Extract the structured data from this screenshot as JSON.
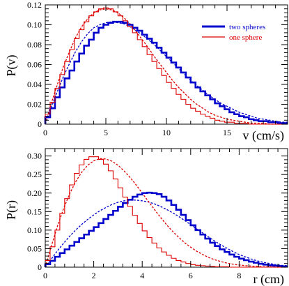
{
  "chart_data": [
    {
      "type": "line",
      "xlabel": "v (cm/s)",
      "ylabel": "P(v)",
      "xlim": [
        0,
        20
      ],
      "ylim": [
        0,
        0.12
      ],
      "xticks": [
        0,
        5,
        10,
        15
      ],
      "yticks": [
        0,
        0.02,
        0.04,
        0.06,
        0.08,
        0.1,
        0.12
      ],
      "ytick_labels": [
        "0",
        "0.02",
        "0.04",
        "0.06",
        "0.08",
        "0.10",
        "0.12"
      ],
      "legend": {
        "position": "top-right",
        "entries": [
          "two spheres",
          "one sphere"
        ]
      },
      "colors": {
        "two spheres": "#0000cc",
        "one sphere": "#dd0000"
      },
      "bin_width": 0.4,
      "series": [
        {
          "name": "two spheres",
          "style": "histogram",
          "x": [
            0.2,
            0.6,
            1,
            1.4,
            1.8,
            2.2,
            2.6,
            3,
            3.4,
            3.8,
            4.2,
            4.6,
            5,
            5.4,
            5.8,
            6.2,
            6.6,
            7,
            7.4,
            7.8,
            8.2,
            8.6,
            9,
            9.4,
            9.8,
            10.2,
            10.6,
            11,
            11.4,
            11.8,
            12.2,
            12.6,
            13,
            13.4,
            13.8,
            14.2,
            14.6,
            15,
            15.4,
            15.8,
            16.2,
            16.6,
            17,
            17.4,
            17.8,
            18.2,
            18.6,
            19,
            19.4,
            19.8
          ],
          "values": [
            0.007,
            0.016,
            0.027,
            0.037,
            0.046,
            0.054,
            0.063,
            0.071,
            0.079,
            0.085,
            0.092,
            0.097,
            0.1,
            0.102,
            0.103,
            0.103,
            0.102,
            0.1,
            0.097,
            0.094,
            0.09,
            0.086,
            0.082,
            0.077,
            0.072,
            0.067,
            0.062,
            0.057,
            0.052,
            0.047,
            0.042,
            0.037,
            0.033,
            0.029,
            0.025,
            0.021,
            0.018,
            0.015,
            0.012,
            0.01,
            0.008,
            0.007,
            0.005,
            0.004,
            0.003,
            0.003,
            0.002,
            0.002,
            0.001,
            0.001
          ]
        },
        {
          "name": "two spheres",
          "style": "dashed-fit",
          "x": [
            0,
            0.5,
            1,
            1.5,
            2,
            2.5,
            3,
            3.5,
            4,
            4.5,
            5,
            5.5,
            6,
            6.5,
            7,
            7.5,
            8,
            8.5,
            9,
            9.5,
            10,
            10.5,
            11,
            11.5,
            12,
            12.5,
            13,
            13.5,
            14,
            14.5,
            15,
            15.5,
            16,
            16.5,
            17,
            17.5,
            18,
            18.5,
            19,
            19.5,
            20
          ],
          "values": [
            0,
            0.017,
            0.033,
            0.048,
            0.061,
            0.073,
            0.083,
            0.091,
            0.097,
            0.1,
            0.102,
            0.103,
            0.102,
            0.101,
            0.098,
            0.094,
            0.09,
            0.085,
            0.08,
            0.074,
            0.068,
            0.062,
            0.056,
            0.05,
            0.044,
            0.039,
            0.034,
            0.029,
            0.025,
            0.021,
            0.018,
            0.015,
            0.012,
            0.01,
            0.008,
            0.006,
            0.005,
            0.004,
            0.003,
            0.002,
            0.002
          ]
        },
        {
          "name": "one sphere",
          "style": "histogram",
          "x": [
            0.2,
            0.6,
            1,
            1.4,
            1.8,
            2.2,
            2.6,
            3,
            3.4,
            3.8,
            4.2,
            4.6,
            5,
            5.4,
            5.8,
            6.2,
            6.6,
            7,
            7.4,
            7.8,
            8.2,
            8.6,
            9,
            9.4,
            9.8,
            10.2,
            10.6,
            11,
            11.4,
            11.8,
            12.2,
            12.6,
            13,
            13.4,
            13.8,
            14.2,
            14.6,
            15,
            15.4,
            15.8,
            16.2,
            16.6,
            17,
            17.4,
            17.8,
            18.2,
            18.6,
            19,
            19.4,
            19.8
          ],
          "values": [
            0.01,
            0.022,
            0.036,
            0.05,
            0.063,
            0.075,
            0.086,
            0.095,
            0.103,
            0.109,
            0.113,
            0.116,
            0.117,
            0.116,
            0.113,
            0.109,
            0.104,
            0.098,
            0.092,
            0.085,
            0.078,
            0.07,
            0.063,
            0.056,
            0.049,
            0.042,
            0.036,
            0.03,
            0.025,
            0.02,
            0.016,
            0.013,
            0.01,
            0.008,
            0.006,
            0.004,
            0.003,
            0.002,
            0.002,
            0.001,
            0.001,
            0.001,
            0,
            0,
            0,
            0,
            0,
            0,
            0,
            0
          ]
        },
        {
          "name": "one sphere",
          "style": "dashed-fit",
          "x": [
            0,
            0.5,
            1,
            1.5,
            2,
            2.5,
            3,
            3.5,
            4,
            4.5,
            5,
            5.5,
            6,
            6.5,
            7,
            7.5,
            8,
            8.5,
            9,
            9.5,
            10,
            10.5,
            11,
            11.5,
            12,
            12.5,
            13,
            13.5,
            14,
            14.5,
            15,
            15.5,
            16,
            16.5,
            17,
            17.5,
            18,
            18.5,
            19,
            19.5,
            20
          ],
          "values": [
            0,
            0.021,
            0.04,
            0.058,
            0.073,
            0.087,
            0.098,
            0.106,
            0.112,
            0.115,
            0.116,
            0.115,
            0.112,
            0.107,
            0.101,
            0.093,
            0.085,
            0.077,
            0.068,
            0.06,
            0.052,
            0.044,
            0.037,
            0.031,
            0.025,
            0.02,
            0.016,
            0.012,
            0.009,
            0.007,
            0.005,
            0.004,
            0.003,
            0.002,
            0.001,
            0.001,
            0.001,
            0,
            0,
            0,
            0
          ]
        }
      ]
    },
    {
      "type": "line",
      "xlabel": "r (cm)",
      "ylabel": "P(r)",
      "xlim": [
        0,
        10
      ],
      "ylim": [
        0,
        0.32
      ],
      "xticks": [
        0,
        2,
        4,
        6,
        8
      ],
      "yticks": [
        0,
        0.05,
        0.1,
        0.15,
        0.2,
        0.25,
        0.3
      ],
      "ytick_labels": [
        "0",
        "0.05",
        "0.10",
        "0.15",
        "0.20",
        "0.25",
        "0.30"
      ],
      "colors": {
        "two spheres": "#0000cc",
        "one sphere": "#dd0000"
      },
      "bin_width": 0.2,
      "series": [
        {
          "name": "two spheres",
          "style": "histogram",
          "x": [
            0.1,
            0.3,
            0.5,
            0.7,
            0.9,
            1.1,
            1.3,
            1.5,
            1.7,
            1.9,
            2.1,
            2.3,
            2.5,
            2.7,
            2.9,
            3.1,
            3.3,
            3.5,
            3.7,
            3.9,
            4.1,
            4.3,
            4.5,
            4.7,
            4.9,
            5.1,
            5.3,
            5.5,
            5.7,
            5.9,
            6.1,
            6.3,
            6.5,
            6.7,
            6.9,
            7.1,
            7.3,
            7.5,
            7.7,
            7.9,
            8.1,
            8.3,
            8.5,
            8.7,
            8.9,
            9.1,
            9.3,
            9.5,
            9.7,
            9.9
          ],
          "values": [
            0.008,
            0.017,
            0.028,
            0.038,
            0.048,
            0.058,
            0.068,
            0.078,
            0.088,
            0.098,
            0.108,
            0.119,
            0.13,
            0.141,
            0.152,
            0.163,
            0.173,
            0.182,
            0.19,
            0.196,
            0.2,
            0.201,
            0.2,
            0.197,
            0.19,
            0.18,
            0.168,
            0.155,
            0.141,
            0.127,
            0.113,
            0.1,
            0.088,
            0.077,
            0.066,
            0.057,
            0.048,
            0.041,
            0.034,
            0.028,
            0.023,
            0.019,
            0.015,
            0.012,
            0.009,
            0.007,
            0.005,
            0.004,
            0.003,
            0.002
          ]
        },
        {
          "name": "two spheres",
          "style": "dashed-fit",
          "x": [
            0,
            0.25,
            0.5,
            0.75,
            1,
            1.25,
            1.5,
            1.75,
            2,
            2.25,
            2.5,
            2.75,
            3,
            3.25,
            3.5,
            3.75,
            4,
            4.25,
            4.5,
            4.75,
            5,
            5.25,
            5.5,
            5.75,
            6,
            6.25,
            6.5,
            6.75,
            7,
            7.25,
            7.5,
            7.75,
            8,
            8.25,
            8.5,
            8.75,
            9,
            9.25,
            9.5,
            9.75,
            10
          ],
          "values": [
            0,
            0.022,
            0.044,
            0.064,
            0.083,
            0.1,
            0.115,
            0.129,
            0.141,
            0.152,
            0.161,
            0.169,
            0.175,
            0.179,
            0.181,
            0.181,
            0.179,
            0.176,
            0.171,
            0.164,
            0.156,
            0.147,
            0.137,
            0.126,
            0.115,
            0.103,
            0.092,
            0.081,
            0.07,
            0.06,
            0.051,
            0.042,
            0.034,
            0.028,
            0.022,
            0.017,
            0.013,
            0.01,
            0.007,
            0.005,
            0.004
          ]
        },
        {
          "name": "one sphere",
          "style": "histogram",
          "x": [
            0.1,
            0.3,
            0.5,
            0.7,
            0.9,
            1.1,
            1.3,
            1.5,
            1.7,
            1.9,
            2.1,
            2.3,
            2.5,
            2.7,
            2.9,
            3.1,
            3.3,
            3.5,
            3.7,
            3.9,
            4.1,
            4.3,
            4.5,
            4.7,
            4.9,
            5.1,
            5.3,
            5.5,
            5.7,
            5.9,
            6.1,
            6.3,
            6.5,
            6.7,
            6.9,
            7.1,
            7.3,
            7.5,
            7.7,
            7.9,
            8.1,
            8.3,
            8.5,
            8.7,
            8.9,
            9.1,
            9.3,
            9.5,
            9.7,
            9.9
          ],
          "values": [
            0.018,
            0.055,
            0.1,
            0.145,
            0.185,
            0.222,
            0.253,
            0.276,
            0.291,
            0.298,
            0.298,
            0.291,
            0.278,
            0.26,
            0.238,
            0.214,
            0.189,
            0.164,
            0.14,
            0.118,
            0.098,
            0.08,
            0.065,
            0.052,
            0.041,
            0.032,
            0.024,
            0.018,
            0.014,
            0.01,
            0.007,
            0.005,
            0.004,
            0.003,
            0.002,
            0.001,
            0.001,
            0.001,
            0,
            0,
            0,
            0,
            0,
            0,
            0,
            0,
            0,
            0,
            0,
            0
          ]
        },
        {
          "name": "one sphere",
          "style": "dashed-fit",
          "x": [
            0,
            0.25,
            0.5,
            0.75,
            1,
            1.25,
            1.5,
            1.75,
            2,
            2.25,
            2.5,
            2.75,
            3,
            3.25,
            3.5,
            3.75,
            4,
            4.25,
            4.5,
            4.75,
            5,
            5.25,
            5.5,
            5.75,
            6,
            6.25,
            6.5,
            6.75,
            7,
            7.25,
            7.5,
            7.75,
            8,
            8.25,
            8.5,
            8.75,
            9,
            9.25,
            9.5,
            9.75,
            10
          ],
          "values": [
            0,
            0.057,
            0.11,
            0.157,
            0.197,
            0.23,
            0.256,
            0.275,
            0.287,
            0.293,
            0.292,
            0.286,
            0.275,
            0.26,
            0.242,
            0.222,
            0.2,
            0.178,
            0.156,
            0.135,
            0.115,
            0.097,
            0.081,
            0.066,
            0.054,
            0.043,
            0.034,
            0.026,
            0.02,
            0.015,
            0.011,
            0.008,
            0.006,
            0.004,
            0.003,
            0.002,
            0.001,
            0.001,
            0,
            0,
            0
          ]
        }
      ]
    }
  ]
}
